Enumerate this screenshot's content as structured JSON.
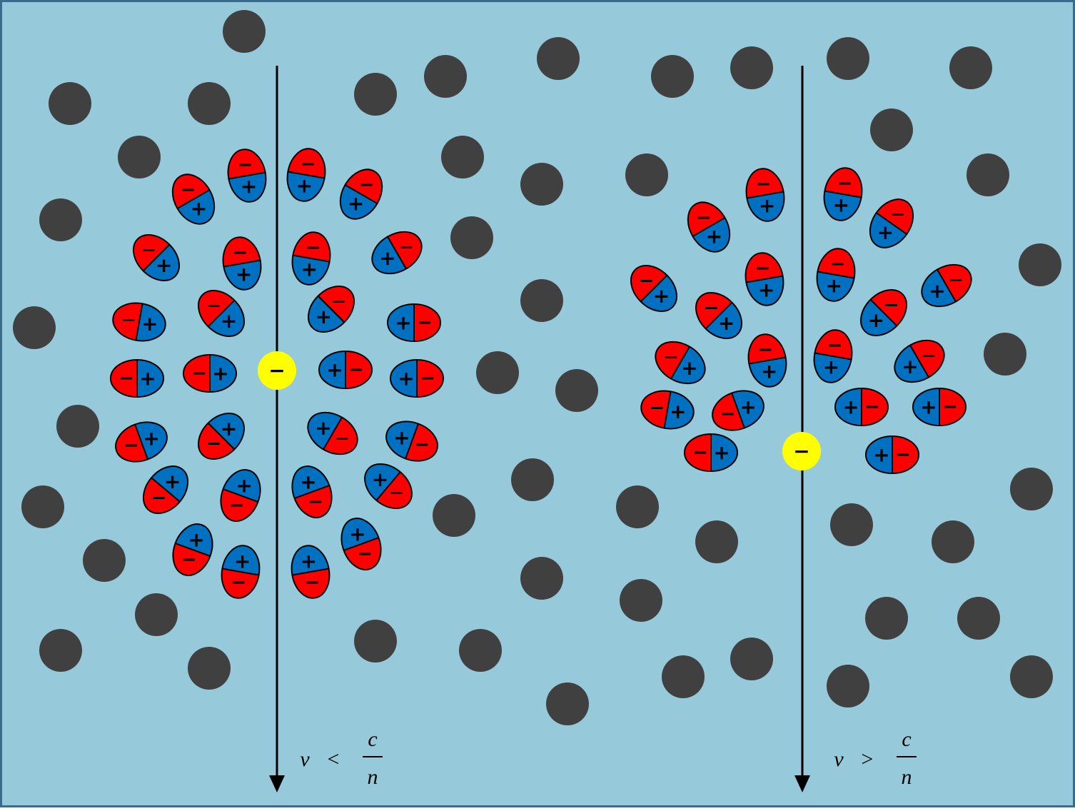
{
  "colors": {
    "background": "#96cadb",
    "border": "#3a6b8c",
    "atom": "#404040",
    "dipole_negative": "#ff0000",
    "dipole_positive": "#0070c0",
    "charge": "#ffff00",
    "arrow": "#000000"
  },
  "symbols": {
    "minus": "−",
    "plus": "+"
  },
  "panels": [
    {
      "condition": {
        "v": "v",
        "op": "<",
        "num": "c",
        "den": "n"
      }
    },
    {
      "condition": {
        "v": "v",
        "op": ">",
        "num": "c",
        "den": "n"
      }
    }
  ]
}
